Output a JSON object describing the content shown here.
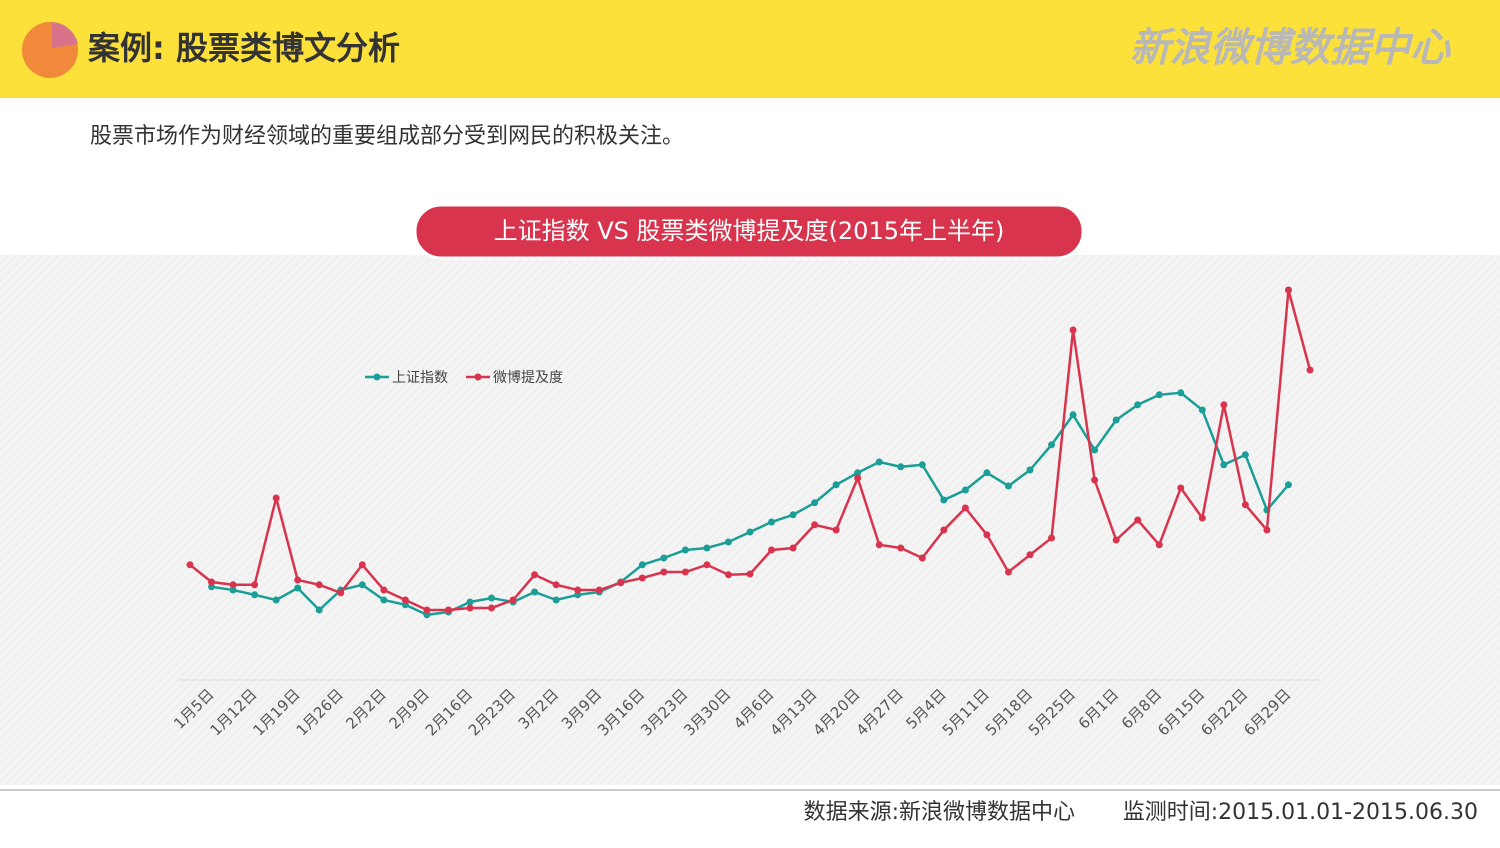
{
  "header": {
    "title": "案例: 股票类博文分析",
    "logo": "新浪微博数据中心"
  },
  "subtitle": "股票市场作为财经领域的重要组成部分受到网民的积极关注。",
  "footer": {
    "source": "数据来源:新浪微博数据中心",
    "period": "监测时间:2015.01.01-2015.06.30"
  },
  "chart_data": {
    "type": "line",
    "title": "上证指数 VS 股票类微博提及度(2015年上半年)",
    "categories": [
      null,
      "1月5日",
      null,
      "1月12日",
      null,
      "1月19日",
      null,
      "1月26日",
      null,
      "2月2日",
      null,
      "2月9日",
      null,
      "2月16日",
      null,
      "2月23日",
      null,
      "3月2日",
      null,
      "3月9日",
      null,
      "3月16日",
      null,
      "3月23日",
      null,
      "3月30日",
      null,
      "4月6日",
      null,
      "4月13日",
      null,
      "4月20日",
      null,
      "4月27日",
      null,
      "5月4日",
      null,
      "5月11日",
      null,
      "5月18日",
      null,
      "5月25日",
      null,
      "6月1日",
      null,
      "6月8日",
      null,
      "6月15日",
      null,
      "6月22日",
      null,
      "6月29日",
      null
    ],
    "series": [
      {
        "name": "上证指数",
        "color": "#1a9e96",
        "values": [
          null,
          23.3,
          22.5,
          21.3,
          20,
          23,
          17.5,
          22.5,
          23.8,
          20,
          18.8,
          16.3,
          17,
          19.5,
          20.5,
          19.5,
          22,
          20,
          21.3,
          22,
          24.5,
          28.8,
          30.5,
          32.5,
          33,
          34.5,
          37,
          39.5,
          41.3,
          44.3,
          48.8,
          51.8,
          54.5,
          53.3,
          53.8,
          45,
          47.5,
          51.8,
          48.5,
          52.5,
          58.8,
          66.3,
          57.5,
          65,
          68.8,
          71.3,
          71.8,
          67.5,
          53.8,
          56.3,
          42.5,
          48.8,
          null
        ]
      },
      {
        "name": "微博提及度",
        "color": "#d8344e",
        "values": [
          28.8,
          24.5,
          23.8,
          23.8,
          45.5,
          25,
          23.8,
          21.8,
          28.8,
          22.5,
          20,
          17.5,
          17.5,
          18,
          18,
          20,
          26.3,
          23.8,
          22.5,
          22.5,
          24.3,
          25.5,
          27,
          27,
          28.8,
          26.3,
          26.5,
          32.5,
          33,
          38.8,
          37.5,
          50.5,
          33.8,
          33,
          30.5,
          37.5,
          43,
          36.3,
          27,
          31.3,
          35.5,
          87.5,
          50,
          35,
          40,
          33.8,
          48,
          40.5,
          68.8,
          43.8,
          37.5,
          97.5,
          77.5
        ]
      }
    ],
    "ylim": [
      0,
      100
    ],
    "legend": "top-left"
  }
}
